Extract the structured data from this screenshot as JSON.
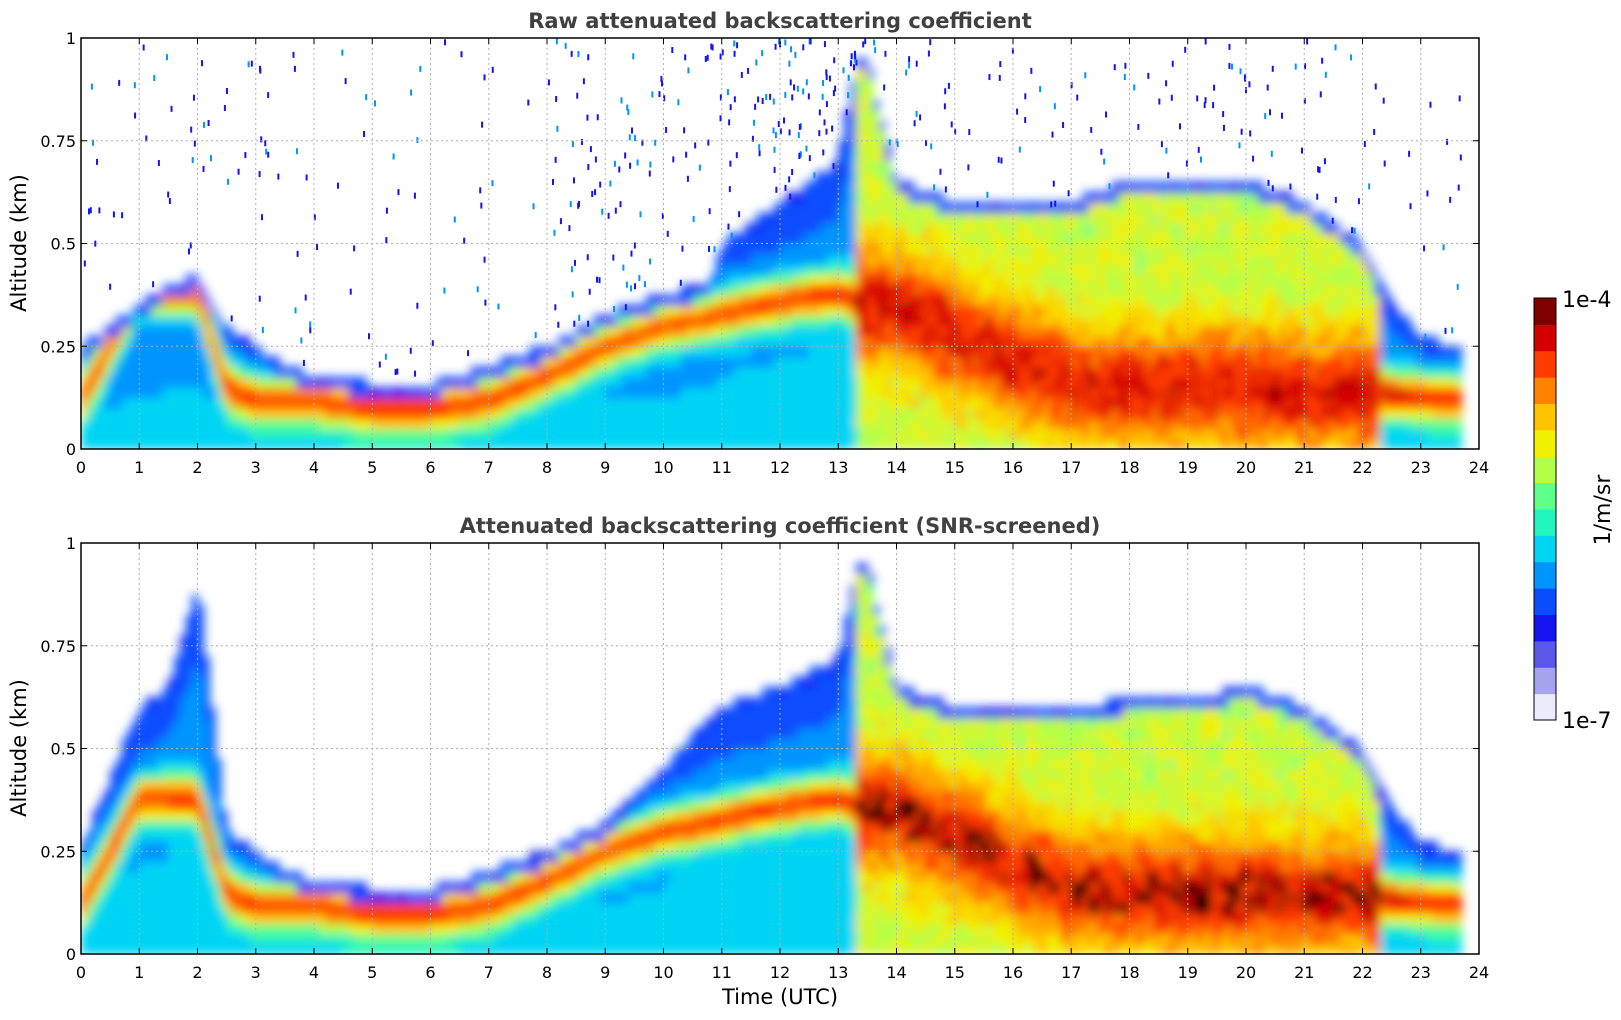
{
  "chart_data": [
    {
      "type": "heatmap",
      "title": "Raw attenuated backscattering coefficient",
      "xlabel": "",
      "ylabel": "Altitude (km)",
      "xlim": [
        0,
        24
      ],
      "ylim": [
        0,
        1
      ],
      "xticks": [
        "0",
        "1",
        "2",
        "3",
        "4",
        "5",
        "6",
        "7",
        "8",
        "9",
        "10",
        "11",
        "12",
        "13",
        "14",
        "15",
        "16",
        "17",
        "18",
        "19",
        "20",
        "21",
        "22",
        "23",
        "24"
      ],
      "yticks": [
        "0",
        "0.25",
        "0.5",
        "0.75",
        "1"
      ],
      "grid": true,
      "boundary_layer_top_km": {
        "x": [
          0,
          1,
          1.5,
          2,
          2.5,
          3,
          3.5,
          4,
          4.5,
          5,
          6,
          7,
          8,
          9,
          10,
          10.8,
          11,
          12,
          13,
          13.3,
          13.5,
          14,
          15,
          16,
          17,
          18,
          19,
          20,
          21,
          22,
          22.3,
          23,
          23.7
        ],
        "y": [
          0.25,
          0.35,
          0.4,
          0.42,
          0.3,
          0.25,
          0.2,
          0.18,
          0.17,
          0.16,
          0.16,
          0.2,
          0.25,
          0.33,
          0.38,
          0.4,
          0.5,
          0.6,
          0.7,
          0.95,
          0.95,
          0.65,
          0.6,
          0.6,
          0.6,
          0.65,
          0.65,
          0.65,
          0.6,
          0.5,
          0.4,
          0.27,
          0.25
        ]
      },
      "aerosol_layer_km": {
        "x": [
          0,
          1,
          1.5,
          2,
          2.5,
          3,
          4,
          5,
          6,
          7,
          8,
          9,
          10,
          10.8,
          11,
          12,
          13,
          13.5,
          14,
          15,
          16,
          17,
          18,
          19,
          20,
          21,
          22,
          23,
          23.7
        ],
        "y": [
          0.12,
          0.38,
          0.38,
          0.38,
          0.15,
          0.12,
          0.12,
          0.1,
          0.1,
          0.12,
          0.18,
          0.25,
          0.3,
          0.32,
          0.33,
          0.36,
          0.38,
          0.35,
          0.35,
          0.28,
          0.22,
          0.16,
          0.15,
          0.15,
          0.15,
          0.14,
          0.14,
          0.13,
          0.12
        ]
      }
    },
    {
      "type": "heatmap",
      "title": "Attenuated backscattering coefficient (SNR-screened)",
      "xlabel": "Time (UTC)",
      "ylabel": "Altitude (km)",
      "xlim": [
        0,
        24
      ],
      "ylim": [
        0,
        1
      ],
      "xticks": [
        "0",
        "1",
        "2",
        "3",
        "4",
        "5",
        "6",
        "7",
        "8",
        "9",
        "10",
        "11",
        "12",
        "13",
        "14",
        "15",
        "16",
        "17",
        "18",
        "19",
        "20",
        "21",
        "22",
        "23",
        "24"
      ],
      "yticks": [
        "0",
        "0.25",
        "0.5",
        "0.75",
        "1"
      ],
      "grid": true,
      "boundary_layer_top_km": {
        "x": [
          0,
          1,
          1.5,
          2,
          2.5,
          3,
          3.5,
          4,
          4.5,
          5,
          6,
          7,
          8,
          9,
          10,
          10.8,
          11,
          12,
          13,
          13.3,
          13.5,
          14,
          15,
          16,
          17,
          18,
          19,
          20,
          21,
          22,
          22.3,
          23,
          23.7
        ],
        "y": [
          0.25,
          0.6,
          0.65,
          0.9,
          0.3,
          0.25,
          0.2,
          0.18,
          0.17,
          0.16,
          0.16,
          0.2,
          0.25,
          0.32,
          0.45,
          0.58,
          0.6,
          0.65,
          0.72,
          0.95,
          0.95,
          0.65,
          0.6,
          0.6,
          0.6,
          0.62,
          0.62,
          0.65,
          0.6,
          0.5,
          0.4,
          0.27,
          0.25
        ]
      },
      "aerosol_layer_km": {
        "x": [
          0,
          1,
          1.5,
          2,
          2.5,
          3,
          4,
          5,
          6,
          7,
          8,
          9,
          10,
          10.8,
          11,
          12,
          13,
          13.5,
          14,
          15,
          16,
          17,
          18,
          19,
          20,
          21,
          22,
          23,
          23.7
        ],
        "y": [
          0.12,
          0.38,
          0.38,
          0.38,
          0.15,
          0.12,
          0.12,
          0.1,
          0.1,
          0.12,
          0.18,
          0.25,
          0.3,
          0.32,
          0.33,
          0.36,
          0.38,
          0.35,
          0.35,
          0.28,
          0.22,
          0.16,
          0.15,
          0.15,
          0.15,
          0.14,
          0.14,
          0.13,
          0.12
        ]
      }
    }
  ],
  "colorbar": {
    "label": "1/m/sr",
    "min_label": "1e-7",
    "max_label": "1e-4",
    "scale": "log",
    "colors": [
      "#ecebfb",
      "#a6a3ee",
      "#5b57e8",
      "#1414f0",
      "#0a4dff",
      "#0094ff",
      "#00d4f4",
      "#21f4bd",
      "#5fff8a",
      "#b4ff46",
      "#f0f000",
      "#ffc400",
      "#ff8200",
      "#ff3c00",
      "#d40000",
      "#7f0000"
    ]
  },
  "palette": {
    "background": "#ffffff",
    "title": "#404040",
    "grid": "#b0b0b0",
    "saturated": "#000000"
  }
}
